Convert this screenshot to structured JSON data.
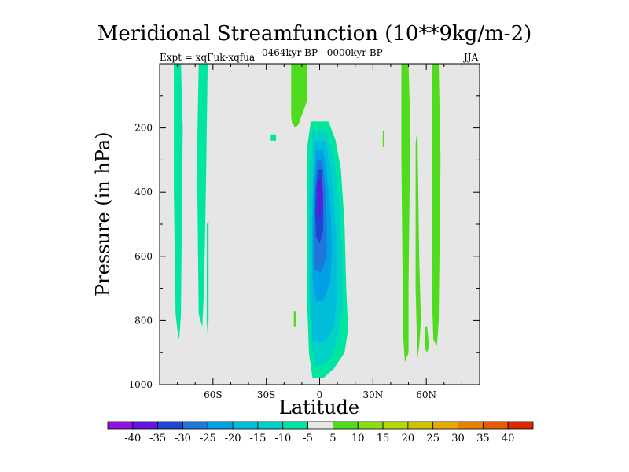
{
  "chart_data": {
    "type": "heatmap",
    "title": "Meridional Streamfunction (10**9kg/m-2)",
    "subtitle_left": "Expt = xqFuk-xqfua",
    "subtitle_center": "0464kyr BP - 0000kyr BP",
    "subtitle_right": "JJA",
    "xlabel": "Latitude",
    "ylabel": "Pressure (in hPa)",
    "xlim": [
      -90,
      90
    ],
    "ylim": [
      1000,
      0
    ],
    "x_ticks": [
      -60,
      -30,
      0,
      30,
      60
    ],
    "x_tick_labels": [
      "60S",
      "30S",
      "0",
      "30N",
      "60N"
    ],
    "y_ticks": [
      200,
      400,
      600,
      800,
      1000
    ],
    "y_tick_labels": [
      "200",
      "400",
      "600",
      "800",
      "1000"
    ],
    "background_class": "-5 to 5",
    "colorbar": {
      "levels": [
        "-40",
        "-35",
        "-30",
        "-25",
        "-20",
        "-15",
        "-10",
        "-5",
        "5",
        "10",
        "15",
        "20",
        "25",
        "30",
        "35",
        "40"
      ],
      "colors": [
        "#8c14dc",
        "#6414dc",
        "#1e46d2",
        "#1e78dc",
        "#00a0e6",
        "#00beda",
        "#00d2c8",
        "#00e6a0",
        "#e6e6e6",
        "#50dc1e",
        "#8cdc14",
        "#b4d70a",
        "#d2c300",
        "#e6aa00",
        "#e68200",
        "#e65a00",
        "#dc2800"
      ]
    },
    "contours": [
      {
        "name": "-5 band 80S",
        "value": -5,
        "points": [
          [
            -82,
            0
          ],
          [
            -78,
            0
          ],
          [
            -77,
            200
          ],
          [
            -78,
            780
          ],
          [
            -79,
            860
          ],
          [
            -80,
            830
          ],
          [
            -81,
            780
          ],
          [
            -82,
            400
          ]
        ]
      },
      {
        "name": "-5 band 65S",
        "value": -5,
        "points": [
          [
            -68,
            0
          ],
          [
            -63,
            0
          ],
          [
            -64,
            400
          ],
          [
            -65,
            700
          ],
          [
            -66,
            820
          ],
          [
            -68,
            780
          ],
          [
            -69,
            300
          ]
        ]
      },
      {
        "name": "-5 band 63S",
        "value": -5,
        "points": [
          [
            -63.5,
            500
          ],
          [
            -62.5,
            490
          ],
          [
            -62.5,
            800
          ],
          [
            -63,
            850
          ],
          [
            -63.5,
            800
          ]
        ]
      },
      {
        "name": "-5 spot 26S",
        "value": -5,
        "points": [
          [
            -27.5,
            220
          ],
          [
            -24.5,
            220
          ],
          [
            -24.5,
            240
          ],
          [
            -27.5,
            240
          ]
        ]
      },
      {
        "name": "+5 band 15S",
        "value": 5,
        "points": [
          [
            -16,
            0
          ],
          [
            -7,
            0
          ],
          [
            -7,
            115
          ],
          [
            -12,
            190
          ],
          [
            -14,
            200
          ],
          [
            -16,
            170
          ]
        ]
      },
      {
        "name": "+5 strip 8S",
        "value": 5,
        "points": [
          [
            -9,
            0
          ],
          [
            -8,
            0
          ],
          [
            -8,
            60
          ],
          [
            -9,
            60
          ]
        ]
      },
      {
        "name": "+5 spot 14S",
        "value": 5,
        "points": [
          [
            -14.5,
            770
          ],
          [
            -13.5,
            770
          ],
          [
            -13.5,
            820
          ],
          [
            -14.5,
            820
          ]
        ]
      },
      {
        "name": "+5 strip 36N",
        "value": 5,
        "points": [
          [
            35.5,
            210
          ],
          [
            36.5,
            210
          ],
          [
            36.5,
            260
          ],
          [
            35.5,
            260
          ]
        ]
      },
      {
        "name": "+5 band 49N",
        "value": 5,
        "points": [
          [
            46,
            0
          ],
          [
            50,
            0
          ],
          [
            51,
            200
          ],
          [
            50,
            700
          ],
          [
            50,
            900
          ],
          [
            48,
            930
          ],
          [
            47,
            850
          ],
          [
            46,
            300
          ]
        ]
      },
      {
        "name": "+5 band 55N",
        "value": 5,
        "points": [
          [
            54,
            250
          ],
          [
            55,
            200
          ],
          [
            56,
            600
          ],
          [
            57,
            800
          ],
          [
            56,
            880
          ],
          [
            55,
            920
          ],
          [
            54,
            700
          ]
        ]
      },
      {
        "name": "+5 spot 60N",
        "value": 5,
        "points": [
          [
            59.5,
            820
          ],
          [
            60.5,
            820
          ],
          [
            61.5,
            880
          ],
          [
            60.5,
            900
          ],
          [
            59.5,
            890
          ]
        ]
      },
      {
        "name": "+5 band 66N",
        "value": 5,
        "points": [
          [
            63,
            0
          ],
          [
            67,
            0
          ],
          [
            68,
            300
          ],
          [
            67,
            800
          ],
          [
            66,
            880
          ],
          [
            64,
            860
          ],
          [
            63,
            700
          ]
        ]
      },
      {
        "name": "-5 equatorial cell",
        "value": -5,
        "points": [
          [
            -5,
            180
          ],
          [
            5,
            180
          ],
          [
            9,
            240
          ],
          [
            12,
            330
          ],
          [
            14,
            500
          ],
          [
            15,
            700
          ],
          [
            16,
            830
          ],
          [
            14,
            900
          ],
          [
            8,
            950
          ],
          [
            2,
            980
          ],
          [
            -4,
            980
          ],
          [
            -6,
            900
          ],
          [
            -7,
            750
          ],
          [
            -7,
            500
          ],
          [
            -7,
            260
          ]
        ]
      },
      {
        "name": "-10 equatorial cell",
        "value": -10,
        "points": [
          [
            -4,
            210
          ],
          [
            4,
            210
          ],
          [
            8,
            290
          ],
          [
            11,
            430
          ],
          [
            13,
            600
          ],
          [
            13,
            760
          ],
          [
            10,
            870
          ],
          [
            6,
            920
          ],
          [
            1,
            940
          ],
          [
            -3,
            940
          ],
          [
            -5,
            850
          ],
          [
            -6,
            700
          ],
          [
            -6,
            420
          ],
          [
            -5,
            280
          ]
        ]
      },
      {
        "name": "-15 equatorial cell",
        "value": -15,
        "points": [
          [
            -3,
            240
          ],
          [
            3,
            240
          ],
          [
            6,
            320
          ],
          [
            8,
            440
          ],
          [
            10,
            580
          ],
          [
            10,
            720
          ],
          [
            8,
            820
          ],
          [
            4,
            860
          ],
          [
            0,
            870
          ],
          [
            -4,
            860
          ],
          [
            -5,
            750
          ],
          [
            -5,
            560
          ],
          [
            -4,
            380
          ]
        ]
      },
      {
        "name": "-20 equatorial cell",
        "value": -20,
        "points": [
          [
            -2,
            270
          ],
          [
            2,
            270
          ],
          [
            4,
            340
          ],
          [
            6,
            440
          ],
          [
            7,
            580
          ],
          [
            6,
            680
          ],
          [
            2,
            740
          ],
          [
            -2,
            740
          ],
          [
            -4,
            660
          ],
          [
            -4,
            480
          ],
          [
            -3,
            360
          ]
        ]
      },
      {
        "name": "-25 equatorial cell",
        "value": -25,
        "points": [
          [
            -1.5,
            300
          ],
          [
            1.5,
            300
          ],
          [
            3,
            380
          ],
          [
            4,
            500
          ],
          [
            4,
            600
          ],
          [
            1,
            650
          ],
          [
            -3,
            640
          ],
          [
            -3.5,
            520
          ],
          [
            -3,
            400
          ]
        ]
      },
      {
        "name": "-30 equatorial cell",
        "value": -30,
        "points": [
          [
            -1,
            330
          ],
          [
            1,
            330
          ],
          [
            2,
            410
          ],
          [
            2,
            520
          ],
          [
            0,
            560
          ],
          [
            -2,
            540
          ],
          [
            -2.5,
            460
          ],
          [
            -2,
            390
          ]
        ]
      },
      {
        "name": "-35 equatorial cell",
        "value": -35,
        "points": [
          [
            -0.5,
            360
          ],
          [
            0.8,
            360
          ],
          [
            1,
            430
          ],
          [
            0.5,
            480
          ],
          [
            -0.8,
            480
          ],
          [
            -1,
            420
          ]
        ]
      }
    ]
  }
}
